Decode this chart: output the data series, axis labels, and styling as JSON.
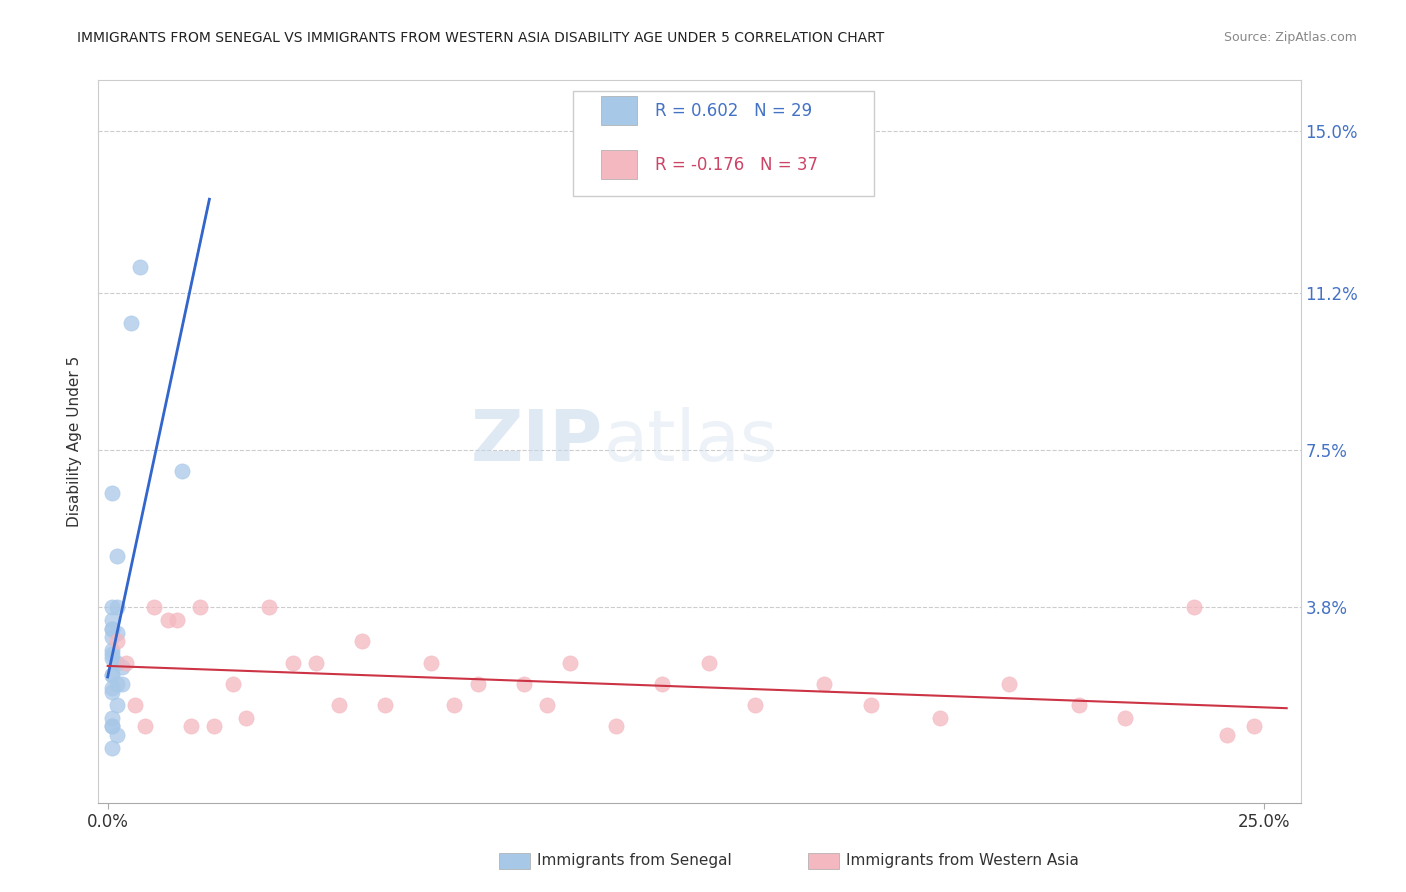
{
  "title": "IMMIGRANTS FROM SENEGAL VS IMMIGRANTS FROM WESTERN ASIA DISABILITY AGE UNDER 5 CORRELATION CHART",
  "source": "Source: ZipAtlas.com",
  "ylabel": "Disability Age Under 5",
  "xlim": [
    -0.002,
    0.258
  ],
  "ylim": [
    -0.008,
    0.162
  ],
  "xtick_values": [
    0.0,
    0.25
  ],
  "xtick_labels": [
    "0.0%",
    "25.0%"
  ],
  "ytick_values": [
    0.038,
    0.075,
    0.112,
    0.15
  ],
  "ytick_labels": [
    "3.8%",
    "7.5%",
    "11.2%",
    "15.0%"
  ],
  "legend_label1": "Immigrants from Senegal",
  "legend_label2": "Immigrants from Western Asia",
  "R1": 0.602,
  "N1": 29,
  "R2": -0.176,
  "N2": 37,
  "color1": "#a8c8e8",
  "color2": "#f4b8c0",
  "trendline1_color": "#3366cc",
  "trendline2_color": "#cc3344",
  "watermark_zip": "ZIP",
  "watermark_atlas": "atlas",
  "sen_x": [
    0.005,
    0.007,
    0.001,
    0.002,
    0.001,
    0.001,
    0.002,
    0.001,
    0.001,
    0.001,
    0.001,
    0.002,
    0.002,
    0.003,
    0.001,
    0.001,
    0.002,
    0.003,
    0.001,
    0.001,
    0.001,
    0.002,
    0.016,
    0.001,
    0.001,
    0.001,
    0.002,
    0.001,
    0.001
  ],
  "sen_y": [
    0.105,
    0.118,
    0.065,
    0.038,
    0.038,
    0.033,
    0.032,
    0.031,
    0.028,
    0.027,
    0.026,
    0.025,
    0.05,
    0.024,
    0.022,
    0.022,
    0.02,
    0.02,
    0.035,
    0.019,
    0.018,
    0.015,
    0.07,
    0.012,
    0.01,
    0.01,
    0.008,
    0.005,
    0.033
  ],
  "wa_x": [
    0.002,
    0.004,
    0.006,
    0.008,
    0.01,
    0.013,
    0.015,
    0.018,
    0.02,
    0.023,
    0.027,
    0.03,
    0.035,
    0.04,
    0.045,
    0.05,
    0.055,
    0.06,
    0.07,
    0.075,
    0.08,
    0.09,
    0.095,
    0.1,
    0.11,
    0.12,
    0.13,
    0.14,
    0.155,
    0.165,
    0.18,
    0.195,
    0.21,
    0.22,
    0.235,
    0.242,
    0.248
  ],
  "wa_y": [
    0.03,
    0.025,
    0.015,
    0.01,
    0.038,
    0.035,
    0.035,
    0.01,
    0.038,
    0.01,
    0.02,
    0.012,
    0.038,
    0.025,
    0.025,
    0.015,
    0.03,
    0.015,
    0.025,
    0.015,
    0.02,
    0.02,
    0.015,
    0.025,
    0.01,
    0.02,
    0.025,
    0.015,
    0.02,
    0.015,
    0.012,
    0.02,
    0.015,
    0.012,
    0.038,
    0.008,
    0.01
  ]
}
